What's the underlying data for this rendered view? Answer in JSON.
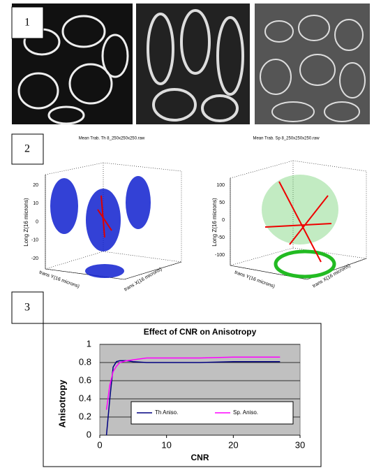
{
  "panel_labels": [
    "1",
    "2",
    "3"
  ],
  "plots3d": [
    {
      "title": "Mean Trab. Th 8_250x250x250.raw",
      "zlabel": "Long Z(16 microns)",
      "xlabel": "trans X(16 microns)",
      "ylabel": "trans Y(16 microns)",
      "zticks": [
        20,
        10,
        0,
        -10,
        -20
      ]
    },
    {
      "title": "Mean Trab. Sp 8_250x250x250.raw",
      "zlabel": "Long Z(16 microns)",
      "xlabel": "trans X(16 microns)",
      "ylabel": "trans Y(16 microns)",
      "zticks": [
        100,
        50,
        0,
        -50,
        -100
      ]
    }
  ],
  "chart_data": {
    "type": "line",
    "title": "Effect of CNR on Anisotropy",
    "x_label": "CNR",
    "y_label": "Anisotropy",
    "x": [
      1,
      1.5,
      2,
      2.5,
      3,
      4,
      5,
      7,
      10,
      15,
      20,
      27
    ],
    "series": [
      {
        "name": "Th Aniso.",
        "color": "#000080",
        "values": [
          0,
          0.4,
          0.75,
          0.81,
          0.82,
          0.82,
          0.81,
          0.8,
          0.8,
          0.8,
          0.81,
          0.81
        ]
      },
      {
        "name": "Sp. Aniso.",
        "color": "#ff00ff",
        "values": [
          0.28,
          0.55,
          0.7,
          0.76,
          0.8,
          0.82,
          0.83,
          0.85,
          0.85,
          0.85,
          0.86,
          0.86
        ]
      }
    ],
    "xlim": [
      0,
      30
    ],
    "xticks": [
      0,
      10,
      20,
      30
    ],
    "ylim": [
      0,
      1
    ],
    "yticks": [
      0,
      0.2,
      0.4,
      0.6,
      0.8,
      1
    ],
    "grid": true
  }
}
